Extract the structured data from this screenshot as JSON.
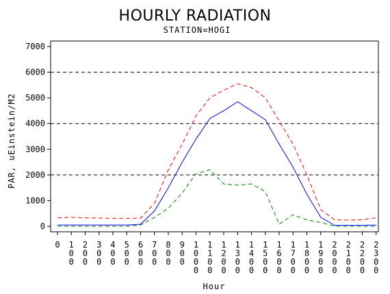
{
  "chart_data": {
    "type": "line",
    "title": "HOURLY RADIATION",
    "subtitle": "STATION=HOGI",
    "xlabel": "Hour",
    "ylabel": "PAR, uEinstein/M2",
    "x": [
      0,
      100,
      200,
      300,
      400,
      500,
      600,
      700,
      800,
      900,
      1000,
      1100,
      1200,
      1300,
      1400,
      1500,
      1600,
      1700,
      1800,
      1900,
      2000,
      2100,
      2200,
      2300
    ],
    "xticks": [
      "0",
      "100",
      "200",
      "300",
      "400",
      "500",
      "600",
      "700",
      "800",
      "900",
      "1000",
      "1100",
      "1200",
      "1300",
      "1400",
      "1500",
      "1600",
      "1700",
      "1800",
      "1900",
      "2000",
      "2100",
      "2200",
      "2300"
    ],
    "yticks": [
      0,
      1000,
      2000,
      3000,
      4000,
      5000,
      6000,
      7000
    ],
    "ylim": [
      0,
      7000
    ],
    "reference_lines": [
      2000,
      4000,
      6000
    ],
    "series": [
      {
        "color": "#ff0000",
        "dash": "dashed",
        "values": [
          330,
          350,
          330,
          320,
          310,
          310,
          320,
          900,
          2200,
          3200,
          4300,
          5000,
          5300,
          5550,
          5400,
          5000,
          4100,
          3200,
          2000,
          650,
          250,
          240,
          260,
          330
        ]
      },
      {
        "color": "#0000ff",
        "dash": "solid",
        "values": [
          50,
          50,
          50,
          50,
          50,
          50,
          80,
          600,
          1500,
          2500,
          3400,
          4200,
          4500,
          4850,
          4500,
          4150,
          3200,
          2300,
          1250,
          350,
          40,
          40,
          40,
          50
        ]
      },
      {
        "color": "#008000",
        "dash": "dashed",
        "values": [
          0,
          0,
          0,
          0,
          0,
          0,
          50,
          350,
          700,
          1300,
          2050,
          2200,
          1650,
          1600,
          1650,
          1350,
          80,
          450,
          250,
          150,
          0,
          0,
          0,
          0
        ]
      }
    ]
  }
}
